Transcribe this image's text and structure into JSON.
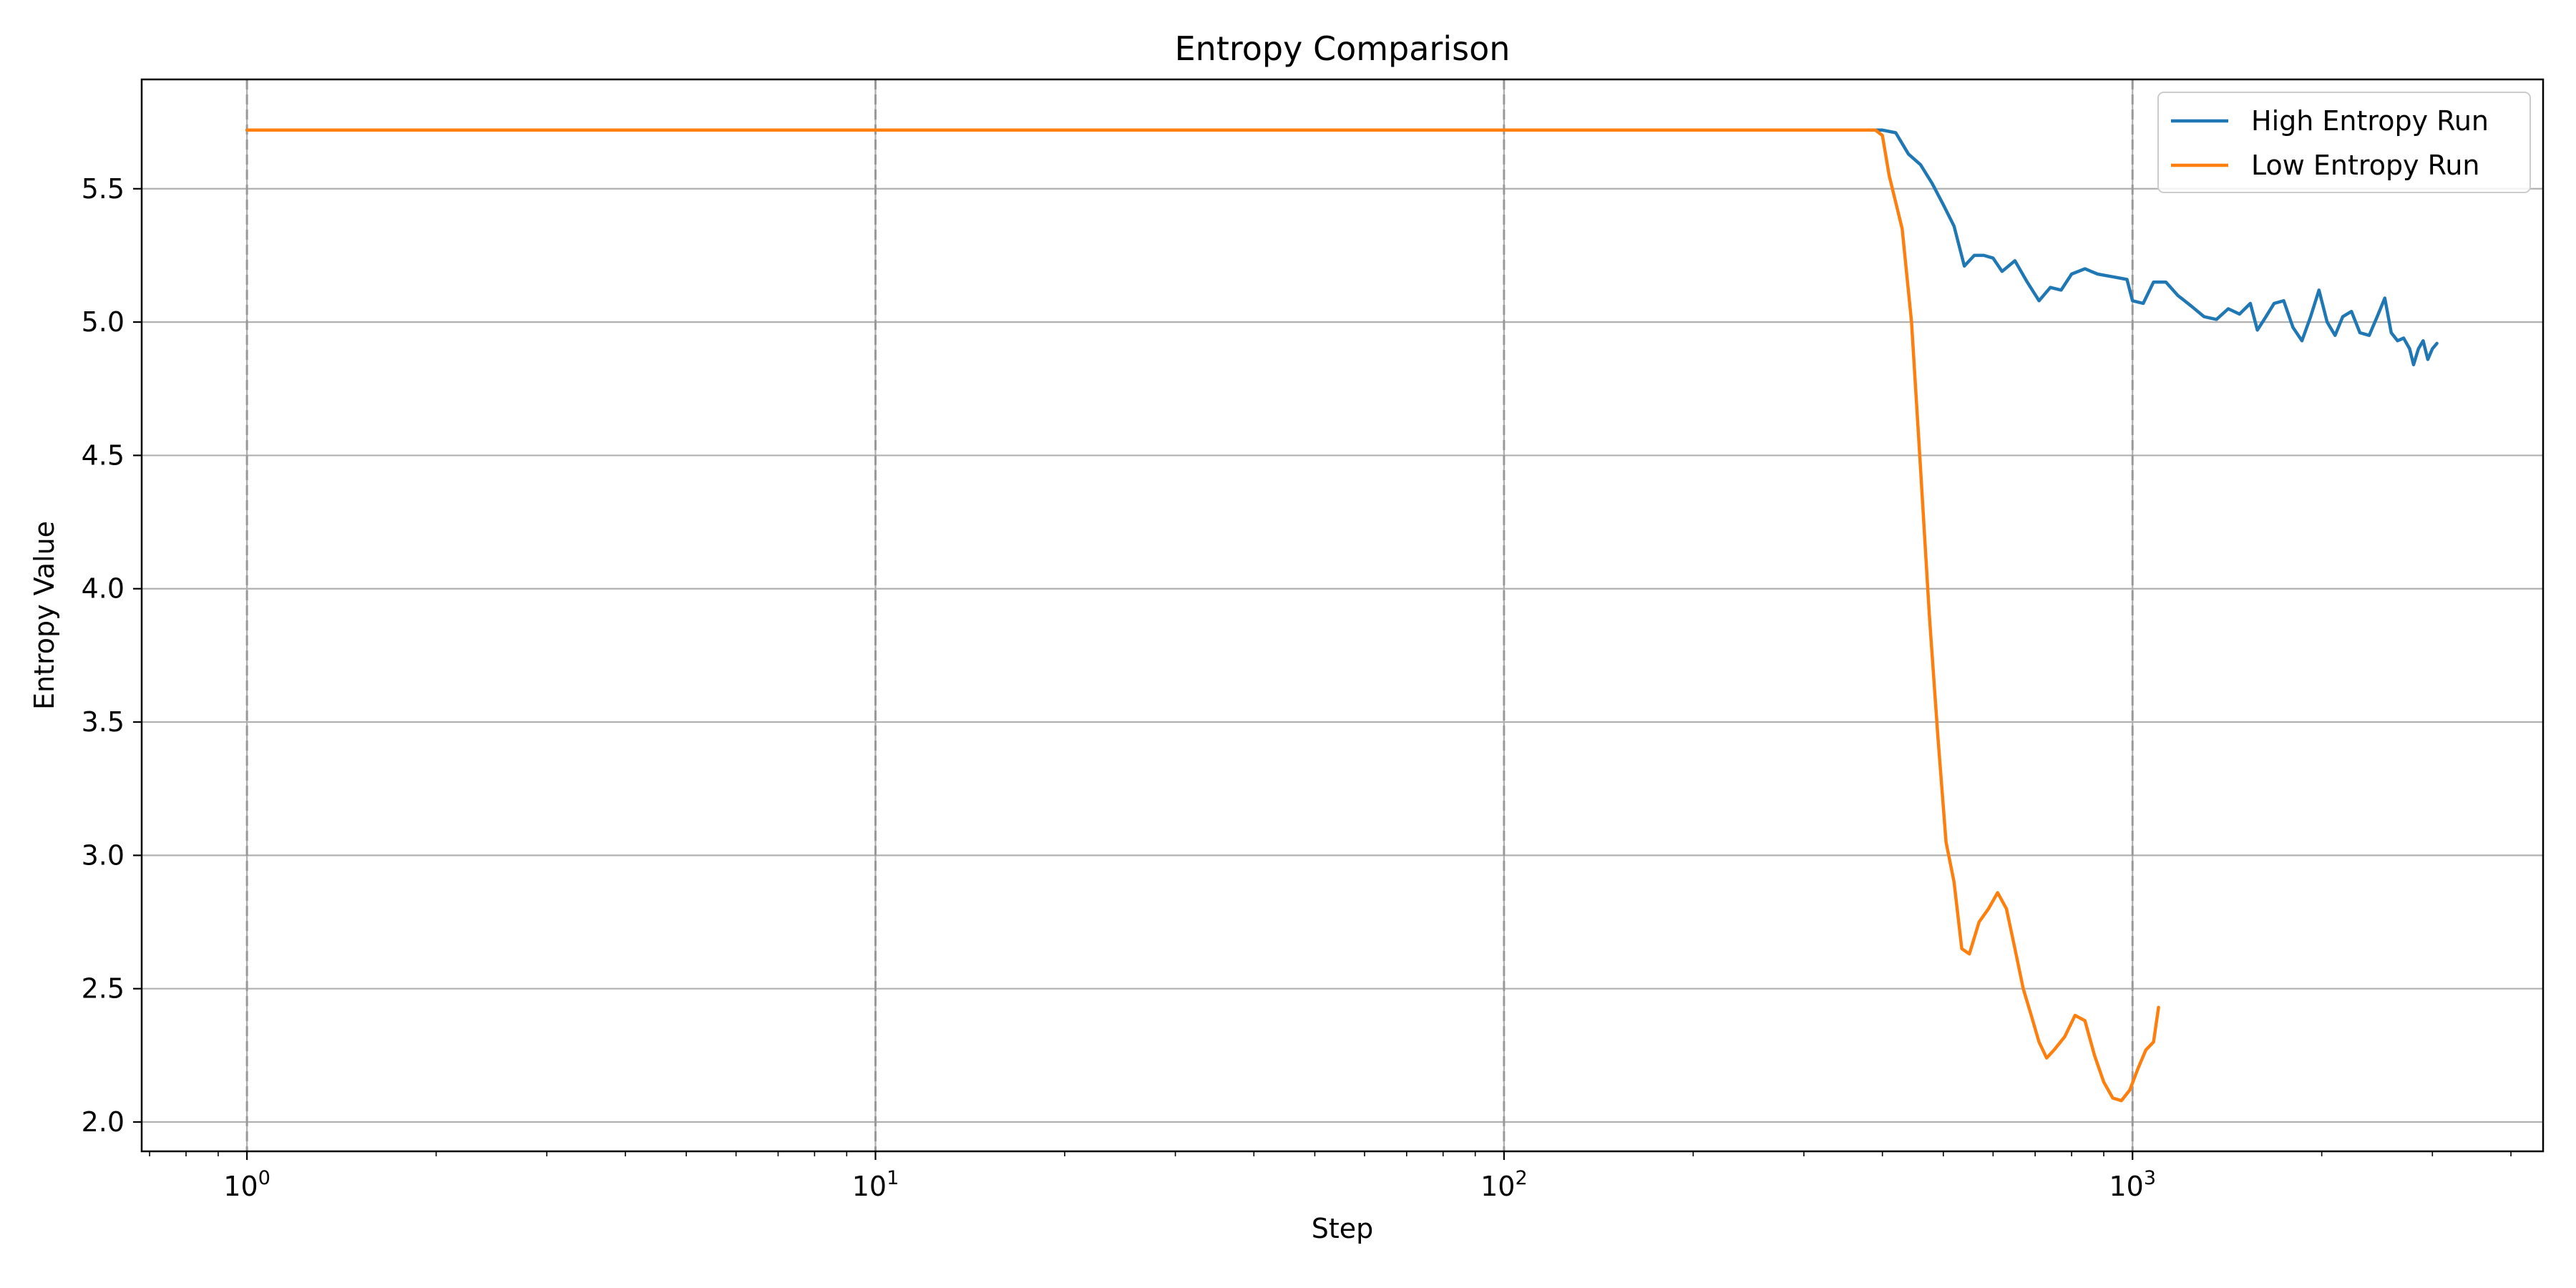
{
  "chart_data": {
    "type": "line",
    "title": "Entropy Comparison",
    "xlabel": "Step",
    "ylabel": "Entropy Value",
    "x_scale": "log",
    "xlim": [
      0.68,
      4500
    ],
    "ylim": [
      1.89,
      5.91
    ],
    "x_major_ticks": [
      {
        "value": 1,
        "base": "10",
        "exp": "0"
      },
      {
        "value": 10,
        "base": "10",
        "exp": "1"
      },
      {
        "value": 100,
        "base": "10",
        "exp": "2"
      },
      {
        "value": 1000,
        "base": "10",
        "exp": "3"
      }
    ],
    "y_ticks": [
      {
        "value": 2.0,
        "label": "2.0"
      },
      {
        "value": 2.5,
        "label": "2.5"
      },
      {
        "value": 3.0,
        "label": "3.0"
      },
      {
        "value": 3.5,
        "label": "3.5"
      },
      {
        "value": 4.0,
        "label": "4.0"
      },
      {
        "value": 4.5,
        "label": "4.5"
      },
      {
        "value": 5.0,
        "label": "5.0"
      },
      {
        "value": 5.5,
        "label": "5.5"
      }
    ],
    "grid": true,
    "vertical_dashed_lines_at": [
      1,
      10,
      100,
      1000
    ],
    "legend_position": "top-right",
    "series": [
      {
        "name": "High Entropy Run",
        "color": "#1f77b4",
        "points": [
          [
            1,
            5.72
          ],
          [
            100,
            5.72
          ],
          [
            400,
            5.72
          ],
          [
            420,
            5.71
          ],
          [
            440,
            5.63
          ],
          [
            460,
            5.59
          ],
          [
            480,
            5.52
          ],
          [
            500,
            5.44
          ],
          [
            520,
            5.36
          ],
          [
            540,
            5.21
          ],
          [
            560,
            5.25
          ],
          [
            580,
            5.25
          ],
          [
            600,
            5.24
          ],
          [
            620,
            5.19
          ],
          [
            650,
            5.23
          ],
          [
            680,
            5.15
          ],
          [
            710,
            5.08
          ],
          [
            740,
            5.13
          ],
          [
            770,
            5.12
          ],
          [
            800,
            5.18
          ],
          [
            840,
            5.2
          ],
          [
            880,
            5.18
          ],
          [
            930,
            5.17
          ],
          [
            980,
            5.16
          ],
          [
            1000,
            5.08
          ],
          [
            1040,
            5.07
          ],
          [
            1080,
            5.15
          ],
          [
            1130,
            5.15
          ],
          [
            1180,
            5.1
          ],
          [
            1240,
            5.06
          ],
          [
            1300,
            5.02
          ],
          [
            1360,
            5.01
          ],
          [
            1420,
            5.05
          ],
          [
            1480,
            5.03
          ],
          [
            1540,
            5.07
          ],
          [
            1580,
            4.97
          ],
          [
            1620,
            5.01
          ],
          [
            1680,
            5.07
          ],
          [
            1740,
            5.08
          ],
          [
            1800,
            4.98
          ],
          [
            1860,
            4.93
          ],
          [
            1920,
            5.02
          ],
          [
            1980,
            5.12
          ],
          [
            2040,
            5.0
          ],
          [
            2100,
            4.95
          ],
          [
            2160,
            5.02
          ],
          [
            2230,
            5.04
          ],
          [
            2300,
            4.96
          ],
          [
            2380,
            4.95
          ],
          [
            2450,
            5.02
          ],
          [
            2520,
            5.09
          ],
          [
            2580,
            4.96
          ],
          [
            2640,
            4.93
          ],
          [
            2700,
            4.94
          ],
          [
            2760,
            4.9
          ],
          [
            2800,
            4.84
          ],
          [
            2850,
            4.9
          ],
          [
            2900,
            4.93
          ],
          [
            2950,
            4.86
          ],
          [
            3000,
            4.9
          ],
          [
            3050,
            4.92
          ]
        ]
      },
      {
        "name": "Low Entropy Run",
        "color": "#ff7f0e",
        "points": [
          [
            1,
            5.72
          ],
          [
            100,
            5.72
          ],
          [
            390,
            5.72
          ],
          [
            400,
            5.7
          ],
          [
            410,
            5.55
          ],
          [
            430,
            5.35
          ],
          [
            445,
            5.0
          ],
          [
            460,
            4.45
          ],
          [
            475,
            3.9
          ],
          [
            490,
            3.45
          ],
          [
            505,
            3.05
          ],
          [
            520,
            2.9
          ],
          [
            535,
            2.65
          ],
          [
            550,
            2.63
          ],
          [
            570,
            2.75
          ],
          [
            590,
            2.8
          ],
          [
            610,
            2.86
          ],
          [
            630,
            2.8
          ],
          [
            650,
            2.65
          ],
          [
            670,
            2.5
          ],
          [
            690,
            2.4
          ],
          [
            710,
            2.3
          ],
          [
            730,
            2.24
          ],
          [
            750,
            2.27
          ],
          [
            780,
            2.32
          ],
          [
            810,
            2.4
          ],
          [
            840,
            2.38
          ],
          [
            870,
            2.25
          ],
          [
            900,
            2.15
          ],
          [
            930,
            2.09
          ],
          [
            960,
            2.08
          ],
          [
            990,
            2.12
          ],
          [
            1020,
            2.2
          ],
          [
            1050,
            2.27
          ],
          [
            1080,
            2.3
          ],
          [
            1100,
            2.43
          ]
        ]
      }
    ]
  }
}
